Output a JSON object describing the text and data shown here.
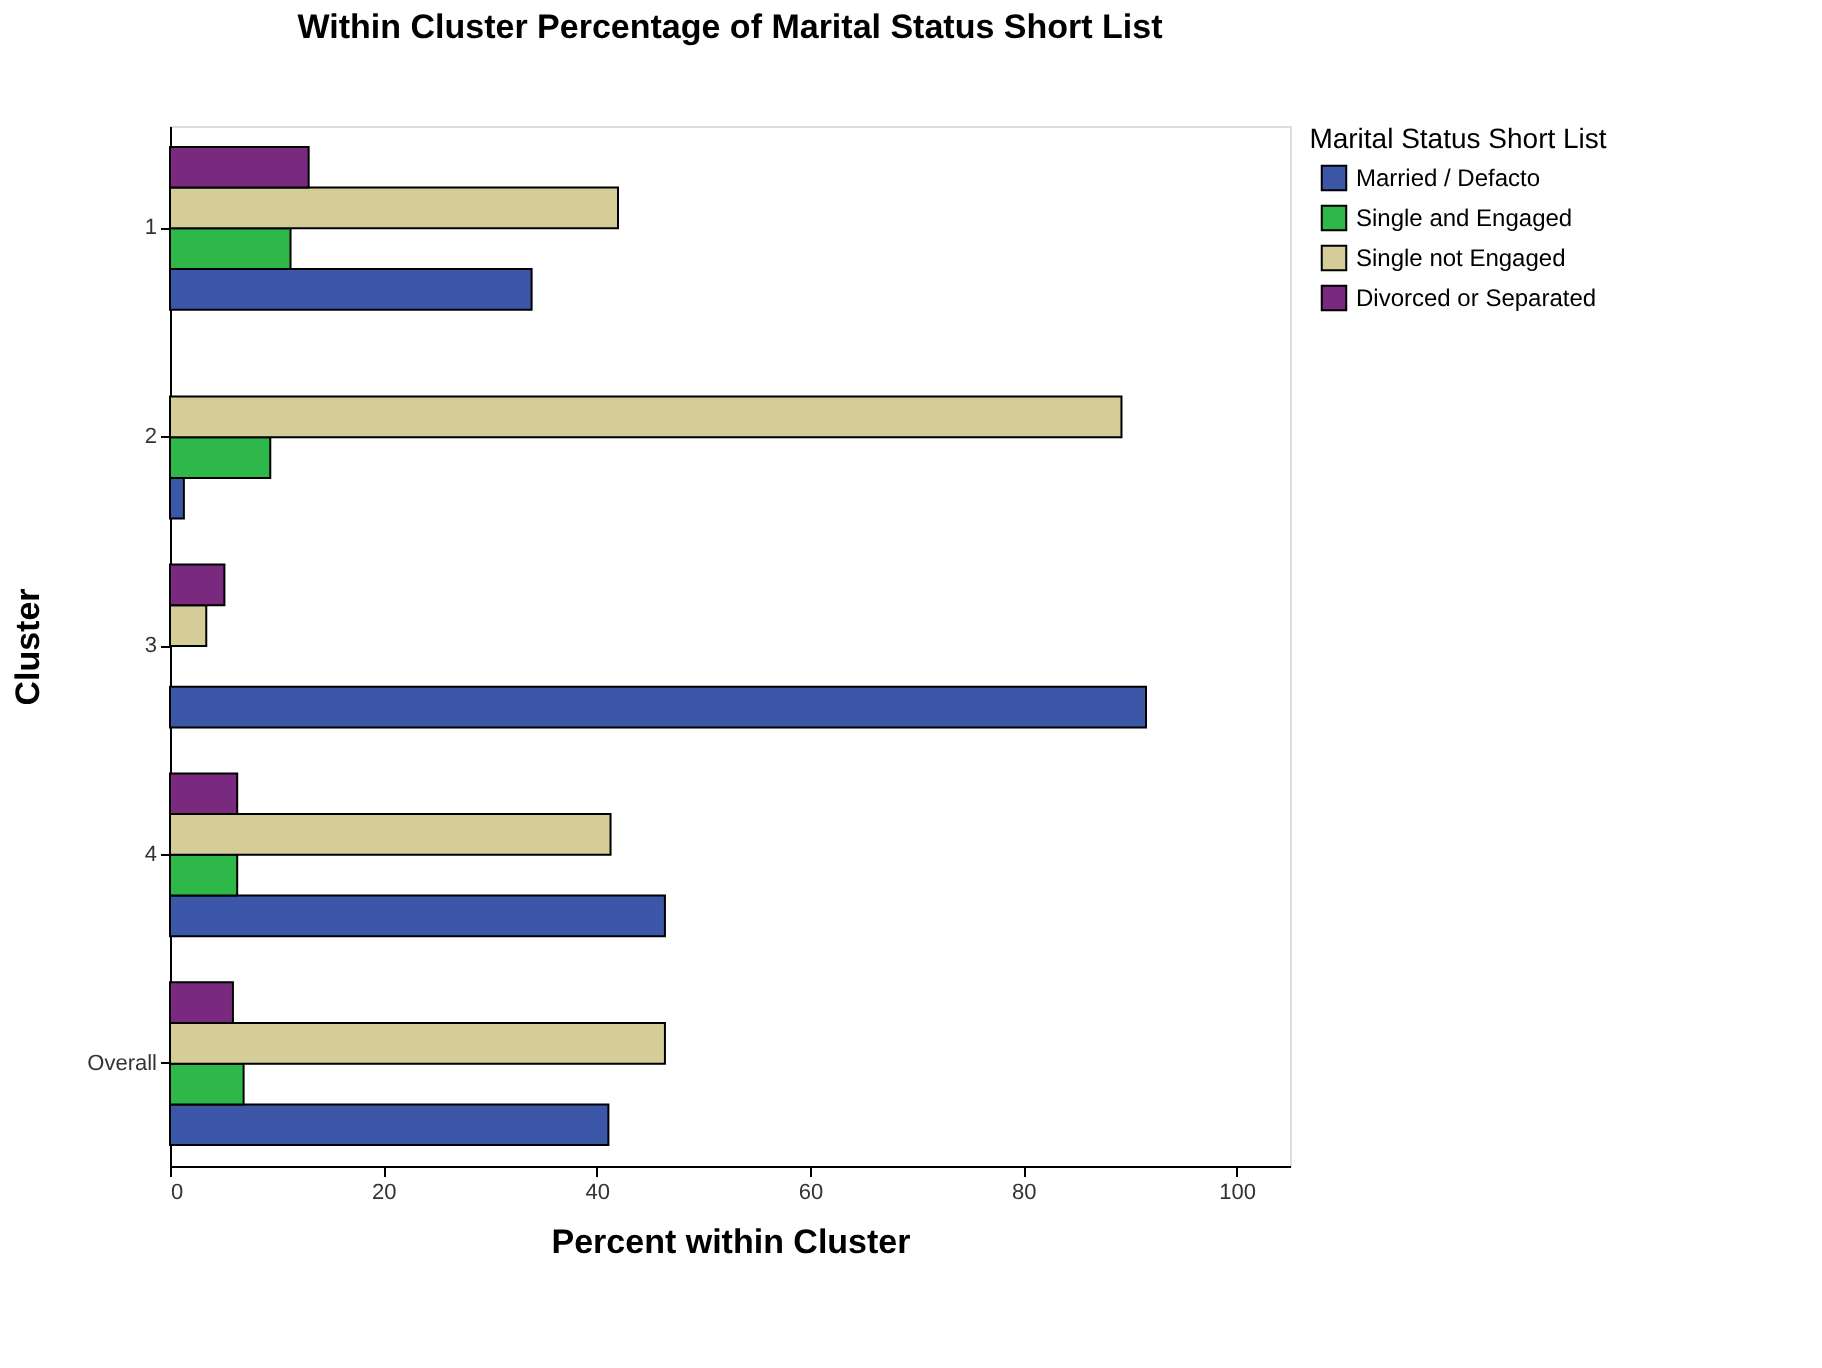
{
  "chart_data": {
    "type": "bar",
    "orientation": "horizontal",
    "title": "Within Cluster Percentage of Marital Status Short List",
    "xlabel": "Percent within Cluster",
    "ylabel": "Cluster",
    "legend_title": "Marital Status Short List",
    "categories": [
      "1",
      "2",
      "3",
      "4",
      "Overall"
    ],
    "series": [
      {
        "name": "Married / Defacto",
        "color": "#3d57a8",
        "values": [
          33.9,
          1.3,
          91.5,
          46.4,
          41.1
        ]
      },
      {
        "name": "Single and Engaged",
        "color": "#2fb84a",
        "values": [
          11.3,
          9.4,
          null,
          6.3,
          6.9
        ]
      },
      {
        "name": "Single not Engaged",
        "color": "#d4cd97",
        "values": [
          42.0,
          89.2,
          3.4,
          41.3,
          46.4
        ]
      },
      {
        "name": "Divorced or Separated",
        "color": "#7a2a7e",
        "values": [
          13.0,
          null,
          5.1,
          6.3,
          5.9
        ]
      }
    ],
    "xlim": [
      0,
      105
    ],
    "xticks": [
      0,
      20,
      40,
      60,
      80,
      100
    ],
    "grid": false,
    "legend": "right"
  }
}
